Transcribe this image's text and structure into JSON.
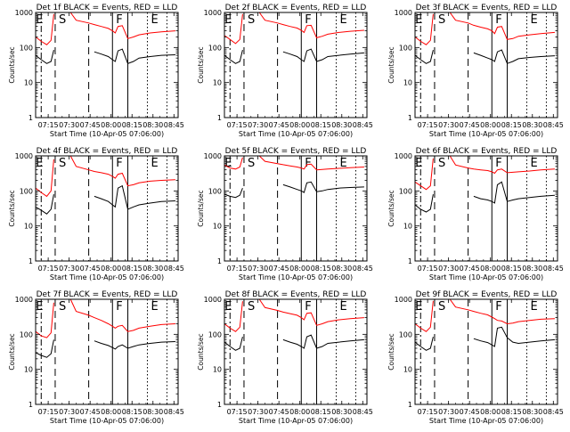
{
  "figure": {
    "panels": [
      {
        "title": "Det 1f BLACK = Events, RED = LLD"
      },
      {
        "title": "Det 2f BLACK = Events, RED = LLD"
      },
      {
        "title": "Det 3f BLACK = Events, RED = LLD"
      },
      {
        "title": "Det 4f BLACK = Events, RED = LLD"
      },
      {
        "title": "Det 5f BLACK = Events, RED = LLD"
      },
      {
        "title": "Det 6f BLACK = Events, RED = LLD"
      },
      {
        "title": "Det 7f BLACK = Events, RED = LLD"
      },
      {
        "title": "Det 8f BLACK = Events, RED = LLD"
      },
      {
        "title": "Det 9f BLACK = Events, RED = LLD"
      }
    ],
    "xlabel": "Start Time (10-Apr-05 07:06:00)",
    "ylabel": "Counts/sec",
    "xticks": [
      "07:15",
      "07:30",
      "07:45",
      "08:00",
      "08:15",
      "08:30",
      "08:45"
    ],
    "yticks": [
      "1",
      "10",
      "100",
      "1000"
    ],
    "markers": [
      "E",
      "S",
      "F",
      "E"
    ]
  },
  "colors": {
    "events": "#000000",
    "lld": "#ff0000"
  },
  "chart_data": {
    "type": "line",
    "layout": "3x3 grid",
    "xlabel": "Start Time (10-Apr-05 07:06:00)",
    "ylabel": "Counts/sec",
    "y_scale": "log",
    "ylim": [
      1,
      1000
    ],
    "xlim": [
      "07:06",
      "08:48"
    ],
    "x_ticks": [
      "07:15",
      "07:30",
      "07:45",
      "08:00",
      "08:15",
      "08:30",
      "08:45"
    ],
    "vertical_lines": [
      {
        "time": "07:10",
        "style": "dash-dot",
        "label": "E"
      },
      {
        "time": "07:20",
        "style": "long-dash",
        "label": "S"
      },
      {
        "time": "07:44",
        "style": "long-dash"
      },
      {
        "time": "08:01",
        "style": "solid",
        "label": "F"
      },
      {
        "time": "08:12",
        "style": "solid"
      },
      {
        "time": "08:26",
        "style": "dotted",
        "label": "E"
      },
      {
        "time": "08:40",
        "style": "dotted"
      }
    ],
    "x": [
      "07:06",
      "07:10",
      "07:14",
      "07:17",
      "07:19",
      "07:20",
      "07:29",
      "07:31",
      "07:35",
      "07:44",
      "07:48",
      "07:53",
      "07:58",
      "08:01",
      "08:03",
      "08:05",
      "08:08",
      "08:12",
      "08:16",
      "08:20",
      "08:28",
      "08:36",
      "08:46"
    ],
    "panels": [
      {
        "title": "Det 1f BLACK = Events, RED = LLD",
        "series": [
          {
            "name": "BLACK = Events",
            "values": [
              60,
              45,
              35,
              40,
              85,
              null,
              null,
              null,
              null,
              null,
              75,
              65,
              55,
              45,
              40,
              80,
              90,
              35,
              40,
              50,
              55,
              60,
              62
            ]
          },
          {
            "name": "RED = LLD",
            "values": [
              200,
              150,
              120,
              160,
              900,
              null,
              null,
              1000,
              600,
              500,
              450,
              400,
              350,
              300,
              260,
              400,
              420,
              180,
              200,
              230,
              260,
              280,
              300
            ]
          }
        ]
      },
      {
        "title": "Det 2f BLACK = Events, RED = LLD",
        "series": [
          {
            "name": "BLACK = Events",
            "values": [
              60,
              45,
              35,
              40,
              85,
              null,
              null,
              null,
              null,
              null,
              75,
              65,
              55,
              45,
              40,
              80,
              90,
              40,
              45,
              55,
              60,
              65,
              70
            ]
          },
          {
            "name": "RED = LLD",
            "values": [
              220,
              170,
              130,
              170,
              900,
              null,
              null,
              1000,
              600,
              500,
              450,
              400,
              360,
              310,
              270,
              420,
              430,
              190,
              210,
              240,
              270,
              290,
              310
            ]
          }
        ]
      },
      {
        "title": "Det 3f BLACK = Events, RED = LLD",
        "series": [
          {
            "name": "BLACK = Events",
            "values": [
              60,
              45,
              35,
              40,
              85,
              null,
              null,
              null,
              null,
              null,
              70,
              60,
              50,
              45,
              40,
              75,
              85,
              35,
              40,
              48,
              52,
              55,
              58
            ]
          },
          {
            "name": "RED = LLD",
            "values": [
              200,
              150,
              120,
              160,
              900,
              null,
              null,
              1000,
              600,
              500,
              430,
              380,
              340,
              300,
              250,
              380,
              400,
              170,
              180,
              210,
              230,
              250,
              270
            ]
          }
        ]
      },
      {
        "title": "Det 4f BLACK = Events, RED = LLD",
        "series": [
          {
            "name": "BLACK = Events",
            "values": [
              35,
              28,
              22,
              30,
              80,
              null,
              null,
              null,
              null,
              null,
              70,
              60,
              50,
              40,
              35,
              120,
              140,
              30,
              35,
              40,
              45,
              50,
              52
            ]
          },
          {
            "name": "RED = LLD",
            "values": [
              120,
              90,
              70,
              100,
              800,
              null,
              null,
              1000,
              500,
              400,
              360,
              330,
              300,
              260,
              230,
              300,
              320,
              140,
              150,
              170,
              190,
              200,
              210
            ]
          }
        ]
      },
      {
        "title": "Det 5f BLACK = Events, RED = LLD",
        "series": [
          {
            "name": "BLACK = Events",
            "values": [
              80,
              70,
              65,
              75,
              120,
              null,
              null,
              null,
              null,
              null,
              150,
              130,
              110,
              100,
              90,
              170,
              180,
              95,
              100,
              110,
              120,
              125,
              130
            ]
          },
          {
            "name": "RED = LLD",
            "values": [
              550,
              450,
              420,
              480,
              900,
              null,
              null,
              1000,
              700,
              600,
              560,
              520,
              480,
              450,
              420,
              560,
              580,
              400,
              410,
              420,
              440,
              460,
              480
            ]
          }
        ]
      },
      {
        "title": "Det 6f BLACK = Events, RED = LLD",
        "series": [
          {
            "name": "BLACK = Events",
            "values": [
              40,
              30,
              25,
              30,
              80,
              null,
              null,
              null,
              null,
              null,
              70,
              60,
              55,
              50,
              45,
              150,
              180,
              50,
              55,
              60,
              65,
              70,
              75
            ]
          },
          {
            "name": "RED = LLD",
            "values": [
              180,
              140,
              110,
              140,
              850,
              null,
              null,
              1000,
              550,
              450,
              420,
              400,
              380,
              350,
              320,
              400,
              420,
              330,
              340,
              350,
              370,
              400,
              420
            ]
          }
        ]
      },
      {
        "title": "Det 7f BLACK = Events, RED = LLD",
        "series": [
          {
            "name": "BLACK = Events",
            "values": [
              30,
              25,
              22,
              28,
              70,
              null,
              null,
              null,
              null,
              null,
              65,
              55,
              48,
              42,
              38,
              45,
              50,
              40,
              45,
              50,
              55,
              60,
              62
            ]
          },
          {
            "name": "RED = LLD",
            "values": [
              120,
              90,
              80,
              110,
              800,
              null,
              null,
              1000,
              450,
              350,
              300,
              250,
              200,
              170,
              150,
              170,
              180,
              120,
              130,
              150,
              170,
              190,
              200
            ]
          }
        ]
      },
      {
        "title": "Det 8f BLACK = Events, RED = LLD",
        "series": [
          {
            "name": "BLACK = Events",
            "values": [
              60,
              45,
              35,
              40,
              85,
              null,
              null,
              null,
              null,
              null,
              70,
              60,
              52,
              45,
              40,
              85,
              95,
              40,
              45,
              55,
              60,
              65,
              70
            ]
          },
          {
            "name": "RED = LLD",
            "values": [
              200,
              150,
              120,
              160,
              880,
              null,
              null,
              1000,
              580,
              480,
              430,
              390,
              350,
              300,
              260,
              400,
              410,
              180,
              200,
              230,
              260,
              280,
              300
            ]
          }
        ]
      },
      {
        "title": "Det 9f BLACK = Events, RED = LLD",
        "series": [
          {
            "name": "BLACK = Events",
            "values": [
              60,
              45,
              35,
              40,
              85,
              null,
              null,
              null,
              null,
              null,
              75,
              65,
              58,
              50,
              45,
              150,
              160,
              80,
              60,
              55,
              60,
              65,
              70
            ]
          },
          {
            "name": "RED = LLD",
            "values": [
              200,
              150,
              120,
              160,
              900,
              null,
              null,
              1000,
              600,
              500,
              450,
              400,
              360,
              310,
              280,
              250,
              240,
              200,
              210,
              230,
              250,
              270,
              280
            ]
          }
        ]
      }
    ]
  }
}
